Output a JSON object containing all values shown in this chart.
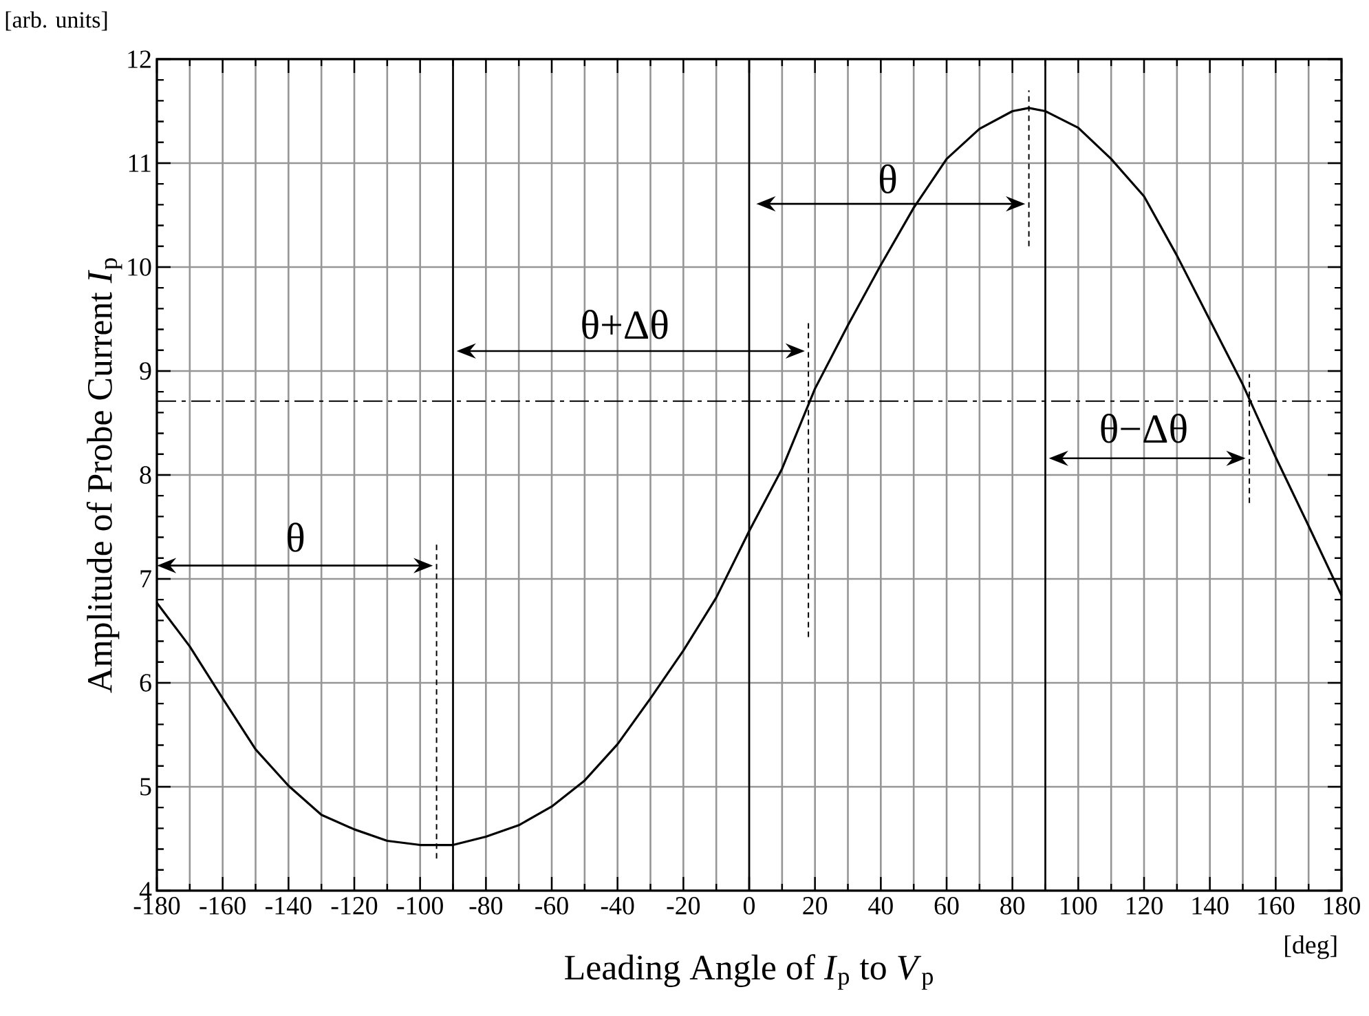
{
  "chart_data": {
    "type": "line",
    "xlabel": "Leading Angle of *I*$_{p}$ to *V*$_{p}$",
    "ylabel": "Amplitude of Probe Current *I*$_{p}$",
    "annotations": [
      "[arb. units]",
      "[deg]",
      "θ",
      "θ+Δθ",
      "θ",
      "θ−Δθ"
    ],
    "series": [
      {
        "color": "#000000",
        "x": [
          -180,
          -170,
          -160,
          -150,
          -140,
          -130,
          -120,
          -110,
          -100,
          -90,
          -80,
          -70,
          -60,
          -50,
          -40,
          -30,
          -20,
          -10,
          0,
          10,
          20,
          30,
          40,
          50,
          60,
          70,
          80,
          85,
          90,
          100,
          110,
          120,
          130,
          140,
          150,
          160,
          170,
          180
        ],
        "values": [
          6.77,
          6.35,
          5.85,
          5.36,
          5.01,
          4.73,
          4.59,
          4.48,
          4.44,
          4.44,
          4.52,
          4.63,
          4.81,
          5.06,
          5.41,
          5.85,
          6.31,
          6.82,
          7.46,
          8.06,
          8.83,
          9.44,
          10.02,
          10.57,
          11.04,
          11.33,
          11.5,
          11.53,
          11.5,
          11.34,
          11.04,
          10.68,
          10.11,
          9.49,
          8.87,
          8.17,
          7.51,
          6.84
        ]
      },
      {
        "color": "#000000",
        "x": [
          -95,
          -95
        ],
        "values": [
          4.31,
          7.35
        ],
        "line_style": "dashed"
      },
      {
        "color": "#000000",
        "x": [
          18,
          18
        ],
        "values": [
          6.44,
          9.48
        ],
        "line_style": "dashed"
      },
      {
        "color": "#000000",
        "x": [
          85,
          85
        ],
        "values": [
          10.2,
          11.7
        ],
        "line_style": "dashed"
      },
      {
        "color": "#000000",
        "x": [
          152,
          152
        ],
        "values": [
          7.73,
          8.97
        ],
        "line_style": "dashed"
      }
    ],
    "ref_lines": [
      {
        "axis": "x",
        "value": -90,
        "color": "#000000"
      },
      {
        "axis": "x",
        "value": 0,
        "color": "#000000"
      },
      {
        "axis": "x",
        "value": 90,
        "color": "#000000"
      },
      {
        "axis": "y",
        "value": 8.71,
        "color": "#000000",
        "line_style": "dashdot"
      }
    ],
    "xlim": [
      -180,
      180
    ],
    "ylim": [
      4,
      12
    ],
    "xticks": [
      -180,
      -160,
      -140,
      -120,
      -100,
      -80,
      -60,
      -40,
      -20,
      0,
      20,
      40,
      60,
      80,
      100,
      120,
      140,
      160,
      180
    ],
    "yticks": [
      4,
      5,
      6,
      7,
      8,
      9,
      10,
      11,
      12
    ],
    "grid": true
  }
}
